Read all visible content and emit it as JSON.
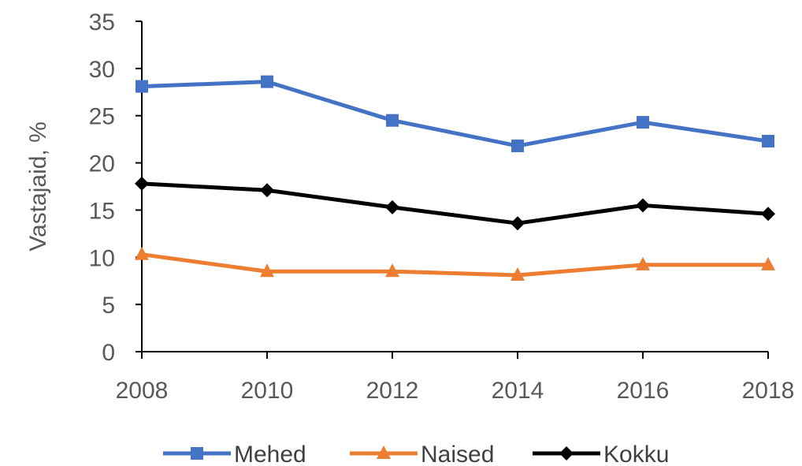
{
  "chart_data": {
    "type": "line",
    "title": "",
    "xlabel": "",
    "ylabel": "Vastajaid, %",
    "categories": [
      "2008",
      "2010",
      "2012",
      "2014",
      "2016",
      "2018"
    ],
    "ylim": [
      0,
      35
    ],
    "yticks": [
      0,
      5,
      10,
      15,
      20,
      25,
      30,
      35
    ],
    "grid": false,
    "legend_position": "bottom",
    "series": [
      {
        "name": "Mehed",
        "values": [
          28.1,
          28.6,
          24.5,
          21.8,
          24.3,
          22.3
        ],
        "color": "#4472C4",
        "marker": "square"
      },
      {
        "name": "Naised",
        "values": [
          10.3,
          8.5,
          8.5,
          8.1,
          9.2,
          9.2
        ],
        "color": "#ED7D31",
        "marker": "triangle"
      },
      {
        "name": "Kokku",
        "values": [
          17.8,
          17.1,
          15.3,
          13.6,
          15.5,
          14.6
        ],
        "color": "#000000",
        "marker": "diamond"
      }
    ]
  }
}
